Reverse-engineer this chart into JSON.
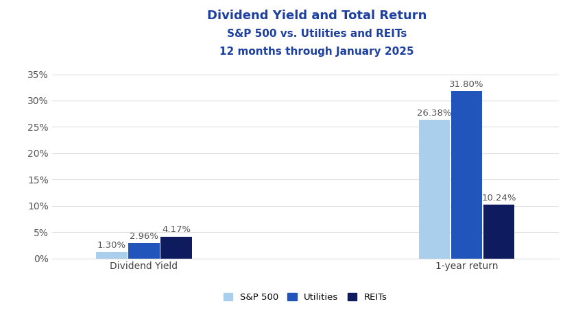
{
  "title_line1": "Dividend Yield and Total Return",
  "title_line2": "S&P 500 vs. Utilities and REITs",
  "title_line3": "12 months through January 2025",
  "groups": [
    "Dividend Yield",
    "1-year return"
  ],
  "series": [
    "S&P 500",
    "Utilities",
    "REITs"
  ],
  "values": {
    "Dividend Yield": [
      1.3,
      2.96,
      4.17
    ],
    "1-year return": [
      26.38,
      31.8,
      10.24
    ]
  },
  "colors": {
    "S&P 500": "#AACFED",
    "Utilities": "#2255BB",
    "REITs": "#0E1B5E"
  },
  "labels": {
    "Dividend Yield": [
      "1.30%",
      "2.96%",
      "4.17%"
    ],
    "1-year return": [
      "26.38%",
      "31.80%",
      "10.24%"
    ]
  },
  "ylim": [
    0,
    35
  ],
  "yticks": [
    0,
    5,
    10,
    15,
    20,
    25,
    30,
    35
  ],
  "ytick_labels": [
    "0%",
    "5%",
    "10%",
    "15%",
    "20%",
    "25%",
    "30%",
    "35%"
  ],
  "background_color": "#FFFFFF",
  "title_color": "#1C3FA0",
  "title_fontsize": 13,
  "subtitle_fontsize": 11,
  "bar_width": 0.28,
  "label_fontsize": 9.5,
  "axis_label_fontsize": 10,
  "legend_fontsize": 9.5,
  "grid_color": "#DDDDDD",
  "tick_label_color": "#555555",
  "group_centers": [
    1.0,
    3.8
  ]
}
